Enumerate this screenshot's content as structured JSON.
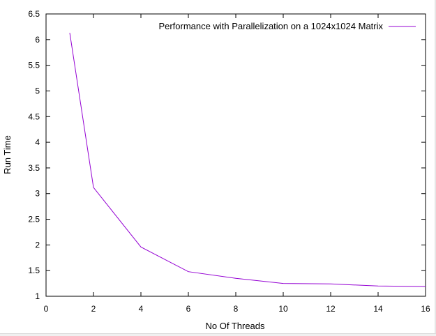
{
  "chart_data": {
    "type": "line",
    "xlabel": "No Of Threads",
    "ylabel": "Run Time",
    "xlim": [
      0,
      16
    ],
    "ylim": [
      1,
      6.5
    ],
    "x_ticks": [
      0,
      2,
      4,
      6,
      8,
      10,
      12,
      14,
      16
    ],
    "y_ticks": [
      1,
      1.5,
      2,
      2.5,
      3,
      3.5,
      4,
      4.5,
      5,
      5.5,
      6,
      6.5
    ],
    "x_tick_labels": [
      "0",
      "2",
      "4",
      "6",
      "8",
      "10",
      "12",
      "14",
      "16"
    ],
    "y_tick_labels": [
      "1",
      "1.5",
      "2",
      "2.5",
      "3",
      "3.5",
      "4",
      "4.5",
      "5",
      "5.5",
      "6",
      "6.5"
    ],
    "grid": false,
    "legend_position": "top-right",
    "series": [
      {
        "name": "Performance with Parallelization on a 1024x1024 Matrix",
        "color": "#9400d3",
        "x": [
          1,
          2,
          4,
          6,
          8,
          10,
          12,
          14,
          16
        ],
        "y": [
          6.13,
          3.12,
          1.96,
          1.48,
          1.35,
          1.25,
          1.24,
          1.2,
          1.19
        ]
      }
    ]
  }
}
